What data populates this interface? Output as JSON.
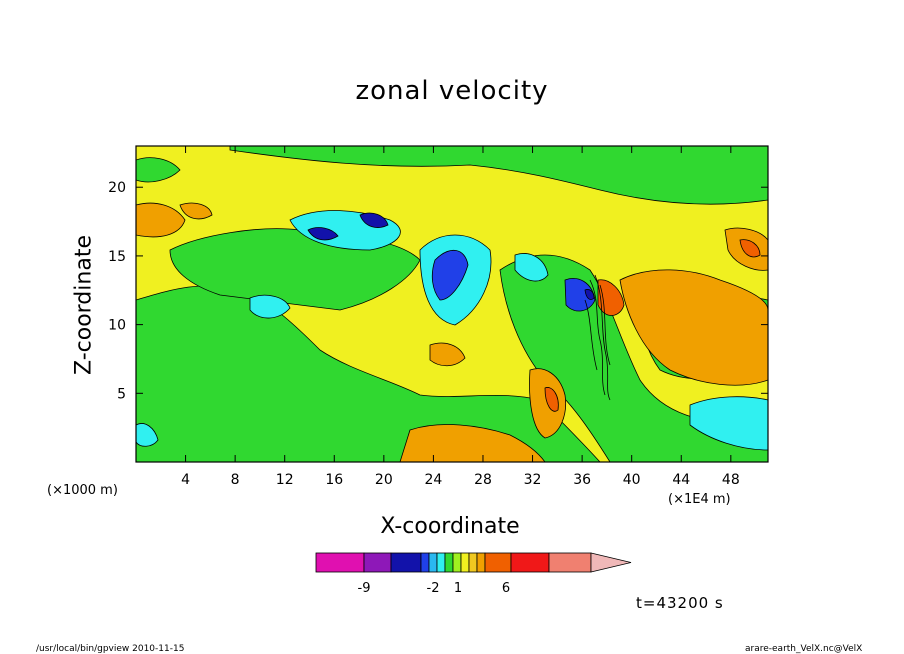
{
  "chart_data": {
    "type": "heatmap",
    "title": "zonal velocity",
    "xlabel": "X-coordinate",
    "ylabel": "Z-coordinate",
    "x_unit_label": "(×1E4 m)",
    "z_unit_label": "(×1000 m)",
    "xlim": [
      0,
      51
    ],
    "ylim": [
      0,
      23
    ],
    "x_ticks": [
      4,
      8,
      12,
      16,
      20,
      24,
      28,
      32,
      36,
      40,
      44,
      48
    ],
    "y_ticks": [
      5,
      10,
      15,
      20
    ],
    "colorbar": {
      "colors": [
        "#e010b0",
        "#8e18b8",
        "#1212aa",
        "#2040e8",
        "#2ab8f0",
        "#30f0f0",
        "#30d830",
        "#a0f020",
        "#f0f020",
        "#f0c820",
        "#f0a000",
        "#f06000",
        "#f01818",
        "#f08070",
        "#f0b8b8"
      ],
      "tick_labels": [
        "-9",
        "-2",
        "1",
        "6"
      ]
    },
    "time_label": "t=43200 s"
  },
  "footer": {
    "left": "/usr/local/bin/gpview   2010-11-15",
    "right": "arare-earth_VelX.nc@VelX"
  }
}
